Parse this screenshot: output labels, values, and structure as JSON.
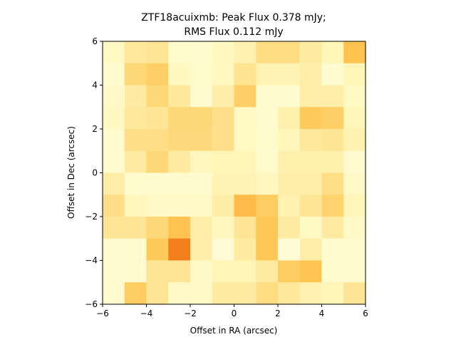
{
  "chart_data": {
    "type": "heatmap",
    "title_line1": "ZTF18acuixmb: Peak Flux 0.378 mJy;",
    "title_line2": "RMS Flux 0.112 mJy",
    "xlabel": "Offset in RA (arcsec)",
    "ylabel": "Offset in Dec (arcsec)",
    "xlim": [
      -6,
      6
    ],
    "ylim": [
      -6,
      6
    ],
    "xticks": [
      -6,
      -4,
      -2,
      0,
      2,
      4,
      6
    ],
    "yticks": [
      -6,
      -4,
      -2,
      0,
      2,
      4,
      6
    ],
    "xtick_labels": [
      "−6",
      "−4",
      "−2",
      "0",
      "2",
      "4",
      "6"
    ],
    "ytick_labels": [
      "−6",
      "−4",
      "−2",
      "0",
      "2",
      "4",
      "6"
    ],
    "colormap": "YlOrBr",
    "vmin": 0,
    "vmax": 1,
    "grid_rows_top_to_bottom": [
      [
        0.1,
        0.22,
        0.24,
        0.08,
        0.07,
        0.11,
        0.16,
        0.28,
        0.28,
        0.2,
        0.14,
        0.38
      ],
      [
        0.07,
        0.3,
        0.33,
        0.11,
        0.08,
        0.11,
        0.25,
        0.15,
        0.15,
        0.18,
        0.06,
        0.14
      ],
      [
        0.09,
        0.2,
        0.3,
        0.22,
        0.07,
        0.18,
        0.33,
        0.07,
        0.07,
        0.18,
        0.18,
        0.1
      ],
      [
        0.11,
        0.22,
        0.24,
        0.3,
        0.3,
        0.26,
        0.1,
        0.07,
        0.17,
        0.35,
        0.33,
        0.13
      ],
      [
        0.07,
        0.27,
        0.27,
        0.29,
        0.29,
        0.26,
        0.1,
        0.08,
        0.13,
        0.22,
        0.24,
        0.16
      ],
      [
        0.07,
        0.2,
        0.3,
        0.2,
        0.12,
        0.14,
        0.14,
        0.08,
        0.17,
        0.17,
        0.17,
        0.07
      ],
      [
        0.19,
        0.07,
        0.07,
        0.07,
        0.07,
        0.15,
        0.15,
        0.12,
        0.18,
        0.18,
        0.27,
        0.09
      ],
      [
        0.27,
        0.12,
        0.09,
        0.09,
        0.09,
        0.19,
        0.4,
        0.34,
        0.16,
        0.24,
        0.32,
        0.13
      ],
      [
        0.24,
        0.24,
        0.3,
        0.38,
        0.18,
        0.12,
        0.24,
        0.36,
        0.2,
        0.1,
        0.2,
        0.09
      ],
      [
        0.07,
        0.07,
        0.35,
        0.58,
        0.18,
        0.05,
        0.2,
        0.36,
        0.05,
        0.18,
        0.07,
        0.07
      ],
      [
        0.07,
        0.07,
        0.24,
        0.24,
        0.09,
        0.14,
        0.14,
        0.2,
        0.34,
        0.37,
        0.07,
        0.07
      ],
      [
        0.07,
        0.34,
        0.24,
        0.09,
        0.09,
        0.2,
        0.2,
        0.28,
        0.22,
        0.16,
        0.14,
        0.24
      ]
    ]
  }
}
